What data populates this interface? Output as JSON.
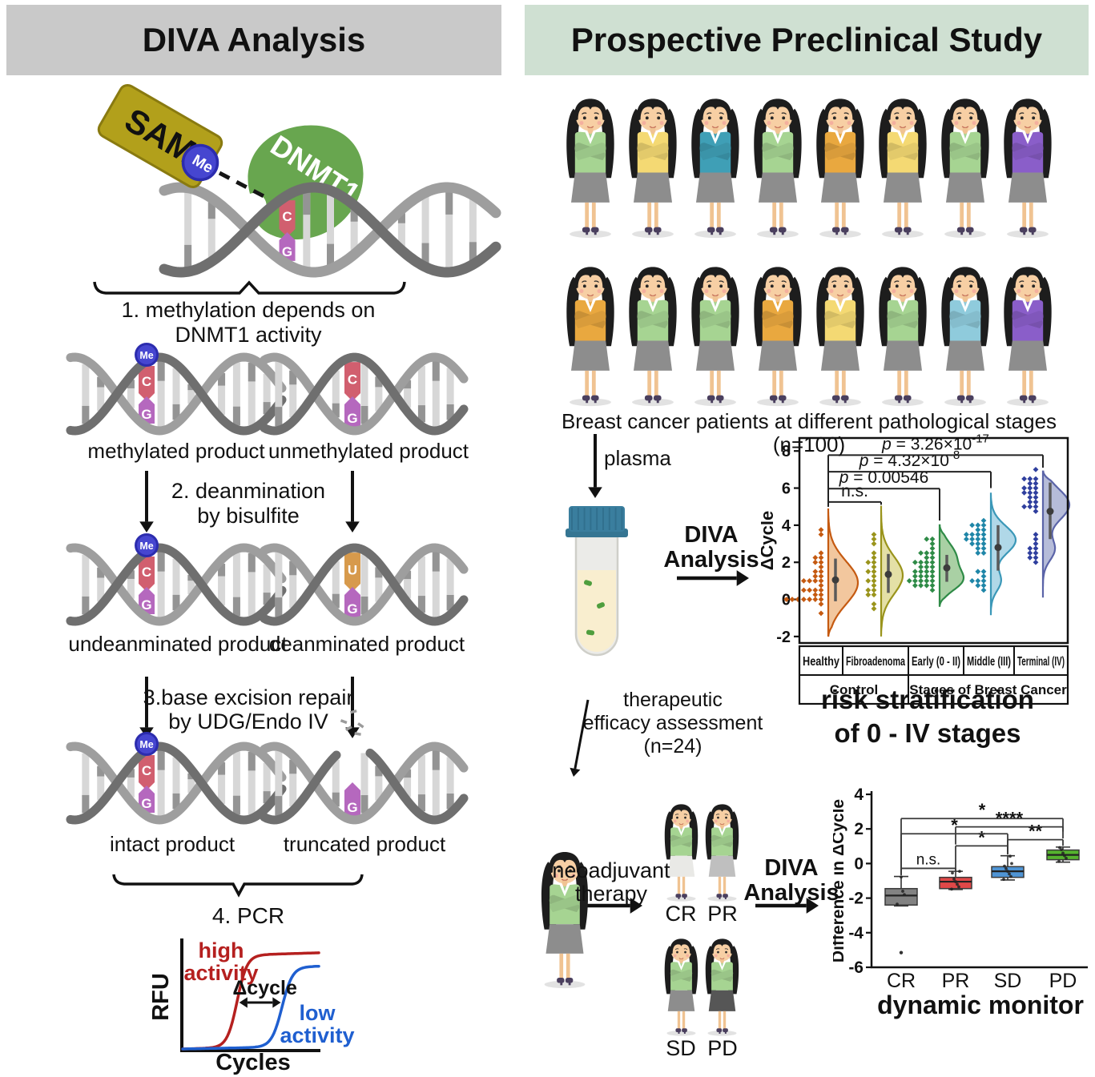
{
  "header": {
    "left_title": "DIVA Analysis",
    "right_title": "Prospective Preclinical Study",
    "left_bg": "#c9c9c9",
    "right_bg": "#cfe0d2"
  },
  "molecules": {
    "sam": "SAM",
    "me": "Me",
    "dnmt1": "DNMT1",
    "c": "C",
    "g": "G",
    "u": "U"
  },
  "steps": {
    "step1_line1": "1. methylation depends on",
    "step1_line2": "DNMT1 activity",
    "step2_line1": "2. deanmination",
    "step2_line2": "by bisulfite",
    "step3_line1": "3.base excision repair",
    "step3_line2": "by UDG/Endo IV",
    "step4": "4. PCR"
  },
  "products": {
    "methylated": "methylated product",
    "unmethylated": "unmethylated product",
    "undeanminated": "undeanminated product",
    "deanminated": "deanminated product",
    "intact": "intact product",
    "truncated": "truncated product"
  },
  "plasma": {
    "label": "plasma"
  },
  "diva_flow": {
    "line1": "DIVA",
    "line2": "Analysis"
  },
  "risk": {
    "line1": "risk stratification",
    "line2": "of 0 - IV stages"
  },
  "therapy": {
    "assess_line1": "therapeutic",
    "assess_line2": "efficacy assessment",
    "assess_line3": "(n=24)",
    "neo_line1": "neoadjuvant",
    "neo_line2": "therapy",
    "diva_line1": "DIVA",
    "diva_line2": "Analysis",
    "responses": [
      "CR",
      "PR",
      "SD",
      "PD"
    ],
    "response_skirts": [
      "#e9e9e6",
      "#bfbfbf",
      "#8d8d8d",
      "#565656"
    ],
    "sweater": "#a6d492"
  },
  "patients": {
    "caption": "Breast cancer patients at different pathological stages (n=100)",
    "skirt": "#8d8d8d",
    "row1_colors": [
      "#a6d492",
      "#f4d973",
      "#3f9fb6",
      "#a6d492",
      "#e9a83f",
      "#f4d973",
      "#a6d492",
      "#8a5ec9"
    ],
    "row2_colors": [
      "#e9a83f",
      "#a6d492",
      "#a6d492",
      "#e9a83f",
      "#f4d973",
      "#a6d492",
      "#8fcbdc",
      "#8a5ec9"
    ]
  },
  "chart_data": [
    {
      "type": "line",
      "xlabel": "Cycles",
      "ylabel": "RFU",
      "annotation": "Δcycle",
      "series": [
        {
          "name_line1": "high",
          "name_line2": "activity",
          "color": "#b5201f",
          "sigmoid": {
            "mid": 0.4,
            "spread": 6.2,
            "amp": 115,
            "drift": 0.03
          }
        },
        {
          "name_line1": "low",
          "name_line2": "activity",
          "color": "#1f5fd0",
          "sigmoid": {
            "mid": 0.73,
            "spread": 6.5,
            "amp": 100,
            "drift": 0.02
          }
        }
      ]
    },
    {
      "type": "raincloud",
      "ylabel": "ΔCycle",
      "ylim": [
        -2.35,
        8.7
      ],
      "yticks": [
        -2,
        0,
        2,
        4,
        6,
        8
      ],
      "categories": [
        "Healthy",
        "Fibroadenoma",
        "Early (0 - II)",
        "Middle (III)",
        "Terminal (IV)"
      ],
      "group_row": [
        {
          "label": "Control",
          "span": 2
        },
        {
          "label": "Stages of Breast Cancer",
          "span": 3
        }
      ],
      "series": [
        {
          "name": "Healthy",
          "outline": "#c55a11",
          "fill": "#f2c79e",
          "point_color": "#c55a11",
          "maxw": 37,
          "mean": 1.05,
          "ci": [
            -0.1,
            2.2
          ],
          "range": [
            -2.0,
            4.9
          ],
          "modes": [
            {
              "mu": 0.9,
              "sigma": 1.15,
              "w": 1
            }
          ],
          "points": [
            -0.8,
            -0.35,
            -0.1,
            0,
            0,
            0.05,
            0.05,
            0.1,
            0.1,
            0.15,
            0.2,
            0.5,
            0.55,
            0.6,
            0.6,
            0.65,
            0.9,
            0.95,
            1.0,
            1.0,
            1.3,
            1.35,
            1.4,
            1.6,
            1.65,
            1.9,
            1.95,
            2.2,
            2.25,
            2.5,
            3.6,
            3.75
          ]
        },
        {
          "name": "Fibroadenoma",
          "outline": "#9a941c",
          "fill": "#e4e0a6",
          "point_color": "#9a941c",
          "maxw": 27,
          "mean": 1.35,
          "ci": [
            0.35,
            2.45
          ],
          "range": [
            -2.0,
            5.05
          ],
          "modes": [
            {
              "mu": 1.3,
              "sigma": 1.0,
              "w": 1
            }
          ],
          "points": [
            -0.5,
            -0.25,
            0.2,
            0.3,
            0.5,
            0.6,
            0.85,
            1.0,
            1.1,
            1.3,
            1.4,
            1.6,
            1.7,
            1.9,
            2.0,
            2.2,
            2.5,
            3.0,
            3.2,
            3.45
          ]
        },
        {
          "name": "Early (0 - II)",
          "outline": "#2f8b47",
          "fill": "#a9d0a4",
          "point_color": "#2f8b47",
          "maxw": 30,
          "mean": 1.7,
          "ci": [
            0.95,
            2.4
          ],
          "range": [
            -0.4,
            4.0
          ],
          "modes": [
            {
              "mu": 1.0,
              "sigma": 0.55,
              "w": 0.55
            },
            {
              "mu": 2.3,
              "sigma": 0.75,
              "w": 0.45
            }
          ],
          "points": [
            0.6,
            0.65,
            0.7,
            0.75,
            0.8,
            0.9,
            0.95,
            1.0,
            1.05,
            1.1,
            1.15,
            1.2,
            1.3,
            1.35,
            1.4,
            1.5,
            1.55,
            1.6,
            1.7,
            1.75,
            1.8,
            1.9,
            2.0,
            2.05,
            2.1,
            2.2,
            2.3,
            2.4,
            2.5,
            2.6,
            2.8,
            3.0,
            3.2,
            3.3
          ]
        },
        {
          "name": "Middle (III)",
          "outline": "#3b98b8",
          "fill": "#b0d8e8",
          "point_color": "#1f86a8",
          "maxw": 31,
          "mean": 2.8,
          "ci": [
            1.55,
            4.0
          ],
          "range": [
            -0.85,
            5.75
          ],
          "modes": [
            {
              "mu": 3.2,
              "sigma": 0.75,
              "w": 0.75
            },
            {
              "mu": 1.0,
              "sigma": 0.55,
              "w": 0.3
            }
          ],
          "points": [
            0.6,
            0.7,
            0.8,
            0.9,
            1.0,
            1.1,
            1.2,
            1.45,
            1.55,
            2.5,
            2.6,
            2.7,
            2.8,
            2.9,
            3.0,
            3.1,
            3.15,
            3.2,
            3.3,
            3.35,
            3.4,
            3.5,
            3.55,
            3.6,
            3.7,
            3.8,
            3.9,
            4.0,
            4.1,
            4.2
          ]
        },
        {
          "name": "Terminal (IV)",
          "outline": "#5b64a8",
          "fill": "#b6bcd9",
          "point_color": "#2f3f9e",
          "maxw": 33,
          "mean": 4.75,
          "ci": [
            3.25,
            6.3
          ],
          "range": [
            0.1,
            6.9
          ],
          "modes": [
            {
              "mu": 5.1,
              "sigma": 0.85,
              "w": 0.8
            },
            {
              "mu": 2.7,
              "sigma": 0.6,
              "w": 0.35
            }
          ],
          "points": [
            2.0,
            2.2,
            2.35,
            2.5,
            2.6,
            2.7,
            2.8,
            3.0,
            3.2,
            3.4,
            4.85,
            5.0,
            5.05,
            5.1,
            5.15,
            5.2,
            5.5,
            5.6,
            5.65,
            5.7,
            5.8,
            5.9,
            6.0,
            6.1,
            6.2,
            6.3,
            6.4,
            6.5,
            6.6,
            6.9
          ]
        }
      ],
      "annotations": [
        {
          "text": "n.s.",
          "from": 0,
          "to": 1,
          "bar": 5.25,
          "left_end": 5.0,
          "right_end": 5.1
        },
        {
          "prefix": "p = ",
          "value": "0.00546",
          "sup": "",
          "from": 0,
          "to": 2,
          "bar": 5.97,
          "left_end": 5.0,
          "right_end": 4.25
        },
        {
          "prefix": "p = ",
          "value": "4.32×10",
          "sup": "-8",
          "from": 0,
          "to": 3,
          "bar": 6.88,
          "left_end": 5.0,
          "right_end": 6.0
        },
        {
          "prefix": "p = ",
          "value": "3.26×10",
          "sup": "-17",
          "from": 0,
          "to": 4,
          "bar": 7.78,
          "left_end": 5.0,
          "right_end": 7.1
        }
      ]
    },
    {
      "type": "box",
      "title": "dynamic monitor",
      "ylabel": "Difference in ΔCycle",
      "ylim": [
        -6,
        4
      ],
      "yticks": [
        -6,
        -4,
        -2,
        0,
        2,
        4
      ],
      "categories": [
        "CR",
        "PR",
        "SD",
        "PD"
      ],
      "boxes": [
        {
          "color": "#828282",
          "q1": -2.4,
          "median": -1.85,
          "q3": -1.45,
          "whisker_low": -2.45,
          "whisker_high": -0.75,
          "outliers": [
            -5.15
          ],
          "points": [
            -2.35,
            -1.8,
            -1.6,
            -0.78
          ]
        },
        {
          "color": "#e04848",
          "q1": -1.45,
          "median": -1.05,
          "q3": -0.8,
          "whisker_low": -1.5,
          "whisker_high": -0.45,
          "outliers": [],
          "points": [
            -1.48,
            -1.35,
            -1.2,
            -1.05,
            -0.9,
            -0.55,
            -0.45
          ]
        },
        {
          "color": "#4f94d4",
          "q1": -0.8,
          "median": -0.45,
          "q3": -0.18,
          "whisker_low": -0.95,
          "whisker_high": 0.45,
          "outliers": [],
          "points": [
            -0.92,
            -0.75,
            -0.6,
            -0.45,
            -0.3,
            -0.15,
            0.0,
            0.42
          ]
        },
        {
          "color": "#55b32e",
          "q1": 0.22,
          "median": 0.5,
          "q3": 0.78,
          "whisker_low": 0.08,
          "whisker_high": 0.95,
          "outliers": [],
          "points": [
            0.12,
            0.3,
            0.45,
            0.6,
            0.8,
            0.92
          ]
        }
      ],
      "annotations": [
        {
          "text": "n.s.",
          "from": 0,
          "to": 1,
          "bar": -0.28,
          "left_end": -0.68,
          "right_end": -0.42
        },
        {
          "text": "*",
          "from": 1,
          "to": 2,
          "bar": 1.02,
          "left_end": -0.4,
          "right_end": 0.52
        },
        {
          "text": "**",
          "from": 2,
          "to": 3,
          "bar": 1.38,
          "left_end": 0.55,
          "right_end": 1.02
        },
        {
          "text": "*",
          "from": 0,
          "to": 2,
          "bar": 1.72,
          "left_end": -0.65,
          "right_end": 0.62
        },
        {
          "text": "****",
          "from": 1,
          "to": 3,
          "bar": 2.12,
          "left_end": 1.1,
          "right_end": 1.45
        },
        {
          "text": "*",
          "from": 0,
          "to": 3,
          "bar": 2.6,
          "left_end": -0.6,
          "right_end": 1.85
        }
      ]
    }
  ]
}
